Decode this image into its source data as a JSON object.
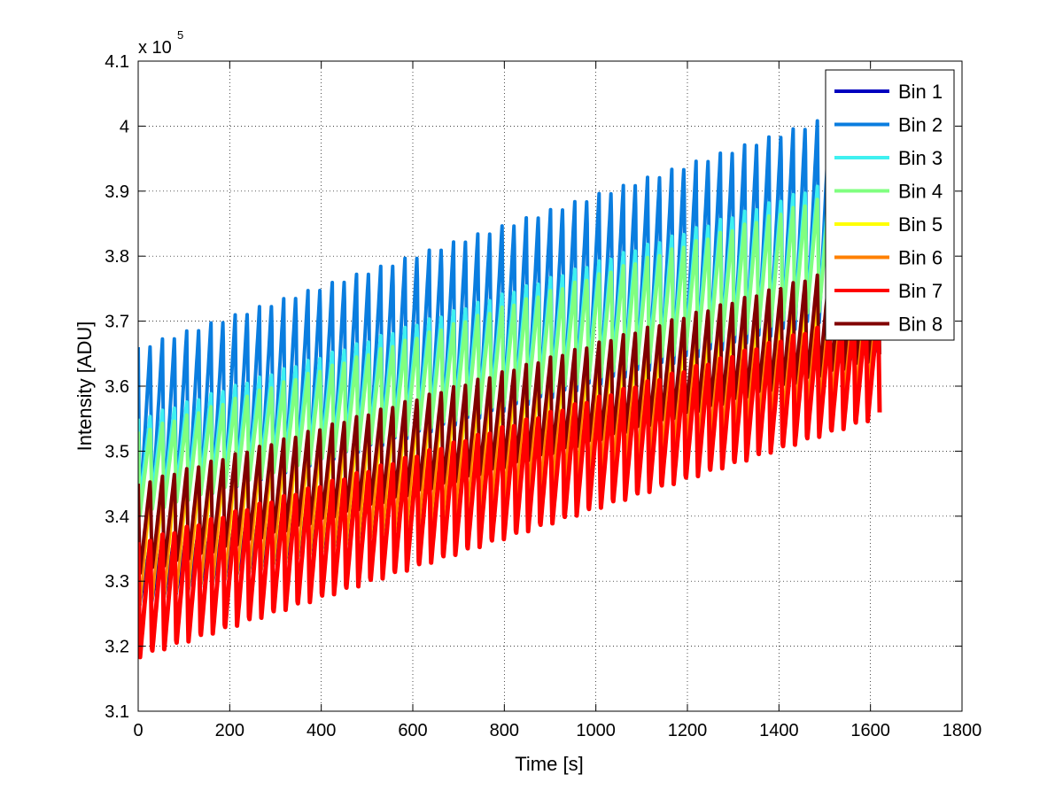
{
  "chart_data": {
    "type": "line",
    "title": "",
    "xlabel": "Time [s]",
    "ylabel": "Intensity [ADU]",
    "xlim": [
      0,
      1800
    ],
    "ylim": [
      310000,
      410000
    ],
    "x_ticks": [
      0,
      200,
      400,
      600,
      800,
      1000,
      1200,
      1400,
      1600,
      1800
    ],
    "x_tick_labels": [
      "0",
      "200",
      "400",
      "600",
      "800",
      "1000",
      "1200",
      "1400",
      "1600",
      "1800"
    ],
    "y_ticks": [
      310000,
      320000,
      330000,
      340000,
      350000,
      360000,
      370000,
      380000,
      390000,
      400000,
      410000
    ],
    "y_tick_labels": [
      "3.1",
      "3.2",
      "3.3",
      "3.4",
      "3.5",
      "3.6",
      "3.7",
      "3.8",
      "3.9",
      "4",
      "4.1"
    ],
    "y_exponent_label": {
      "base": "x 10",
      "exp": "5"
    },
    "grid": true,
    "legend_position": "top-right",
    "x_range": [
      0,
      1620
    ],
    "oscillation_period_s": 26.5,
    "series": [
      {
        "name": "Bin 1",
        "color": "#0000bf",
        "start_min": 326000,
        "start_max": 336000,
        "end_min": 359000,
        "end_max": 368000,
        "width": 3,
        "order": 0
      },
      {
        "name": "Bin 2",
        "color": "#0a7ddf",
        "start_min": 340000,
        "start_max": 366000,
        "end_min": 372000,
        "end_max": 404000,
        "width": 4,
        "order": 1
      },
      {
        "name": "Bin 3",
        "color": "#3ff0f0",
        "start_min": 342000,
        "start_max": 355000,
        "end_min": 375000,
        "end_max": 394000,
        "width": 4,
        "order": 2
      },
      {
        "name": "Bin 4",
        "color": "#80ff80",
        "start_min": 340000,
        "start_max": 353000,
        "end_min": 374000,
        "end_max": 392000,
        "width": 4,
        "order": 3
      },
      {
        "name": "Bin 5",
        "color": "#ffff00",
        "start_min": 326000,
        "start_max": 342000,
        "end_min": 358000,
        "end_max": 376000,
        "width": 3,
        "order": 4
      },
      {
        "name": "Bin 6",
        "color": "#ff8000",
        "start_min": 326000,
        "start_max": 344000,
        "end_min": 358000,
        "end_max": 380000,
        "width": 3,
        "order": 5
      },
      {
        "name": "Bin 8",
        "color": "#800000",
        "start_min": 331000,
        "start_max": 345000,
        "end_min": 364000,
        "end_max": 380000,
        "width": 4,
        "order": 6
      },
      {
        "name": "Bin 7",
        "color": "#ff0000",
        "start_min": 318000,
        "start_max": 336000,
        "end_min": 355000,
        "end_max": 372000,
        "width": 5,
        "order": 7
      }
    ],
    "legend": [
      {
        "name": "Bin 1",
        "color": "#0000bf"
      },
      {
        "name": "Bin 2",
        "color": "#0a7ddf"
      },
      {
        "name": "Bin 3",
        "color": "#3ff0f0"
      },
      {
        "name": "Bin 4",
        "color": "#80ff80"
      },
      {
        "name": "Bin 5",
        "color": "#ffff00"
      },
      {
        "name": "Bin 6",
        "color": "#ff8000"
      },
      {
        "name": "Bin 7",
        "color": "#ff0000"
      },
      {
        "name": "Bin 8",
        "color": "#800000"
      }
    ]
  }
}
